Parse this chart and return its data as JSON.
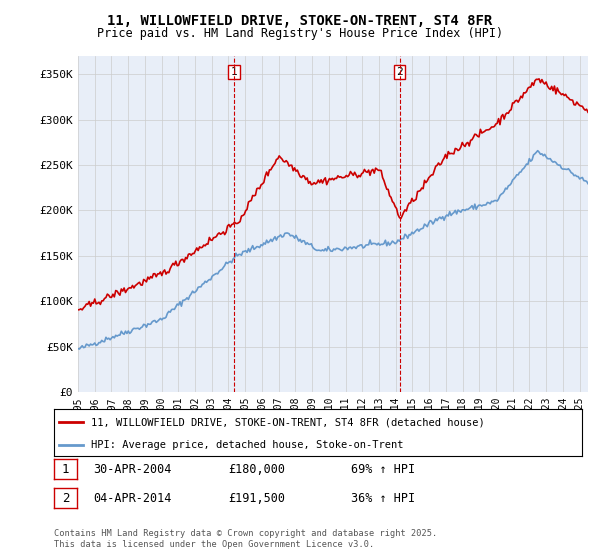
{
  "title": "11, WILLOWFIELD DRIVE, STOKE-ON-TRENT, ST4 8FR",
  "subtitle": "Price paid vs. HM Land Registry's House Price Index (HPI)",
  "ylabel_ticks": [
    "£0",
    "£50K",
    "£100K",
    "£150K",
    "£200K",
    "£250K",
    "£300K",
    "£350K"
  ],
  "ytick_values": [
    0,
    50000,
    100000,
    150000,
    200000,
    250000,
    300000,
    350000
  ],
  "ylim": [
    0,
    370000
  ],
  "xlim_start": 1995.0,
  "xlim_end": 2025.5,
  "vline1_x": 2004.33,
  "vline2_x": 2014.25,
  "vline1_label": "1",
  "vline2_label": "2",
  "legend_line1": "11, WILLOWFIELD DRIVE, STOKE-ON-TRENT, ST4 8FR (detached house)",
  "legend_line2": "HPI: Average price, detached house, Stoke-on-Trent",
  "annotation1_date": "30-APR-2004",
  "annotation1_price": "£180,000",
  "annotation1_hpi": "69% ↑ HPI",
  "annotation2_date": "04-APR-2014",
  "annotation2_price": "£191,500",
  "annotation2_hpi": "36% ↑ HPI",
  "footer": "Contains HM Land Registry data © Crown copyright and database right 2025.\nThis data is licensed under the Open Government Licence v3.0.",
  "red_color": "#cc0000",
  "blue_color": "#6699cc",
  "background_color": "#e8eef8",
  "plot_bg_color": "#ffffff",
  "grid_color": "#cccccc"
}
